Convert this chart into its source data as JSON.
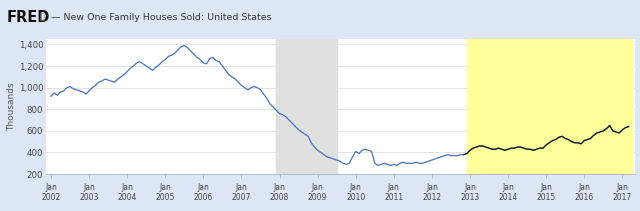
{
  "title_fred": "FRED",
  "title_series": "— New One Family Houses Sold: United States",
  "ylabel": "Thousands",
  "ylim": [
    200,
    1450
  ],
  "yticks": [
    200,
    400,
    600,
    800,
    1000,
    1200,
    1400
  ],
  "ytick_labels": [
    "200",
    "400",
    "600",
    "800",
    "1,000",
    "1,200",
    "1,400"
  ],
  "recession_start": 2007.917,
  "recession_end": 2009.5,
  "highlight_start": 2012.917,
  "highlight_end": 2017.25,
  "highlight_color": "#ffff99",
  "recession_color": "#e0e0e0",
  "line_color_normal": "#4472c4",
  "line_color_highlight": "#1a1a1a",
  "bg_color": "#dce6f5",
  "plot_bg_color": "#ffffff",
  "header_bg_color": "#d0dded",
  "data": [
    [
      2002.0,
      920
    ],
    [
      2002.083,
      950
    ],
    [
      2002.167,
      930
    ],
    [
      2002.25,
      960
    ],
    [
      2002.333,
      970
    ],
    [
      2002.417,
      1000
    ],
    [
      2002.5,
      1010
    ],
    [
      2002.583,
      990
    ],
    [
      2002.667,
      980
    ],
    [
      2002.75,
      970
    ],
    [
      2002.833,
      960
    ],
    [
      2002.917,
      940
    ],
    [
      2003.0,
      970
    ],
    [
      2003.083,
      1000
    ],
    [
      2003.167,
      1020
    ],
    [
      2003.25,
      1050
    ],
    [
      2003.333,
      1060
    ],
    [
      2003.417,
      1080
    ],
    [
      2003.5,
      1070
    ],
    [
      2003.583,
      1060
    ],
    [
      2003.667,
      1050
    ],
    [
      2003.75,
      1080
    ],
    [
      2003.833,
      1100
    ],
    [
      2003.917,
      1120
    ],
    [
      2004.0,
      1150
    ],
    [
      2004.083,
      1180
    ],
    [
      2004.167,
      1200
    ],
    [
      2004.25,
      1230
    ],
    [
      2004.333,
      1240
    ],
    [
      2004.417,
      1220
    ],
    [
      2004.5,
      1200
    ],
    [
      2004.583,
      1180
    ],
    [
      2004.667,
      1160
    ],
    [
      2004.75,
      1190
    ],
    [
      2004.833,
      1210
    ],
    [
      2004.917,
      1240
    ],
    [
      2005.0,
      1260
    ],
    [
      2005.083,
      1290
    ],
    [
      2005.167,
      1300
    ],
    [
      2005.25,
      1320
    ],
    [
      2005.333,
      1350
    ],
    [
      2005.417,
      1380
    ],
    [
      2005.5,
      1390
    ],
    [
      2005.583,
      1370
    ],
    [
      2005.667,
      1340
    ],
    [
      2005.75,
      1310
    ],
    [
      2005.833,
      1280
    ],
    [
      2005.917,
      1260
    ],
    [
      2006.0,
      1230
    ],
    [
      2006.083,
      1220
    ],
    [
      2006.167,
      1270
    ],
    [
      2006.25,
      1280
    ],
    [
      2006.333,
      1250
    ],
    [
      2006.417,
      1240
    ],
    [
      2006.5,
      1200
    ],
    [
      2006.583,
      1160
    ],
    [
      2006.667,
      1120
    ],
    [
      2006.75,
      1100
    ],
    [
      2006.833,
      1080
    ],
    [
      2006.917,
      1050
    ],
    [
      2007.0,
      1020
    ],
    [
      2007.083,
      1000
    ],
    [
      2007.167,
      980
    ],
    [
      2007.25,
      1000
    ],
    [
      2007.333,
      1010
    ],
    [
      2007.417,
      1000
    ],
    [
      2007.5,
      980
    ],
    [
      2007.583,
      940
    ],
    [
      2007.667,
      900
    ],
    [
      2007.75,
      850
    ],
    [
      2007.833,
      820
    ],
    [
      2007.917,
      790
    ],
    [
      2008.0,
      760
    ],
    [
      2008.083,
      750
    ],
    [
      2008.167,
      730
    ],
    [
      2008.25,
      700
    ],
    [
      2008.333,
      670
    ],
    [
      2008.417,
      640
    ],
    [
      2008.5,
      610
    ],
    [
      2008.583,
      590
    ],
    [
      2008.667,
      570
    ],
    [
      2008.75,
      550
    ],
    [
      2008.833,
      490
    ],
    [
      2008.917,
      450
    ],
    [
      2009.0,
      420
    ],
    [
      2009.083,
      400
    ],
    [
      2009.167,
      380
    ],
    [
      2009.25,
      360
    ],
    [
      2009.333,
      350
    ],
    [
      2009.417,
      340
    ],
    [
      2009.5,
      330
    ],
    [
      2009.583,
      320
    ],
    [
      2009.667,
      300
    ],
    [
      2009.75,
      290
    ],
    [
      2009.833,
      300
    ],
    [
      2009.917,
      360
    ],
    [
      2010.0,
      410
    ],
    [
      2010.083,
      390
    ],
    [
      2010.167,
      420
    ],
    [
      2010.25,
      430
    ],
    [
      2010.333,
      420
    ],
    [
      2010.417,
      410
    ],
    [
      2010.5,
      300
    ],
    [
      2010.583,
      280
    ],
    [
      2010.667,
      290
    ],
    [
      2010.75,
      300
    ],
    [
      2010.833,
      290
    ],
    [
      2010.917,
      280
    ],
    [
      2011.0,
      290
    ],
    [
      2011.083,
      280
    ],
    [
      2011.167,
      300
    ],
    [
      2011.25,
      310
    ],
    [
      2011.333,
      300
    ],
    [
      2011.417,
      300
    ],
    [
      2011.5,
      300
    ],
    [
      2011.583,
      310
    ],
    [
      2011.667,
      300
    ],
    [
      2011.75,
      300
    ],
    [
      2011.833,
      310
    ],
    [
      2011.917,
      320
    ],
    [
      2012.0,
      330
    ],
    [
      2012.083,
      340
    ],
    [
      2012.167,
      350
    ],
    [
      2012.25,
      360
    ],
    [
      2012.333,
      370
    ],
    [
      2012.417,
      380
    ],
    [
      2012.5,
      370
    ],
    [
      2012.583,
      370
    ],
    [
      2012.667,
      370
    ],
    [
      2012.75,
      380
    ],
    [
      2012.833,
      380
    ],
    [
      2012.917,
      390
    ],
    [
      2013.0,
      420
    ],
    [
      2013.083,
      440
    ],
    [
      2013.167,
      450
    ],
    [
      2013.25,
      460
    ],
    [
      2013.333,
      460
    ],
    [
      2013.417,
      450
    ],
    [
      2013.5,
      440
    ],
    [
      2013.583,
      430
    ],
    [
      2013.667,
      430
    ],
    [
      2013.75,
      440
    ],
    [
      2013.833,
      430
    ],
    [
      2013.917,
      420
    ],
    [
      2014.0,
      430
    ],
    [
      2014.083,
      440
    ],
    [
      2014.167,
      440
    ],
    [
      2014.25,
      450
    ],
    [
      2014.333,
      450
    ],
    [
      2014.417,
      440
    ],
    [
      2014.5,
      430
    ],
    [
      2014.583,
      430
    ],
    [
      2014.667,
      420
    ],
    [
      2014.75,
      430
    ],
    [
      2014.833,
      440
    ],
    [
      2014.917,
      440
    ],
    [
      2015.0,
      470
    ],
    [
      2015.083,
      490
    ],
    [
      2015.167,
      510
    ],
    [
      2015.25,
      520
    ],
    [
      2015.333,
      540
    ],
    [
      2015.417,
      550
    ],
    [
      2015.5,
      530
    ],
    [
      2015.583,
      520
    ],
    [
      2015.667,
      500
    ],
    [
      2015.75,
      490
    ],
    [
      2015.833,
      490
    ],
    [
      2015.917,
      480
    ],
    [
      2016.0,
      510
    ],
    [
      2016.083,
      520
    ],
    [
      2016.167,
      530
    ],
    [
      2016.25,
      560
    ],
    [
      2016.333,
      580
    ],
    [
      2016.417,
      590
    ],
    [
      2016.5,
      600
    ],
    [
      2016.583,
      620
    ],
    [
      2016.667,
      650
    ],
    [
      2016.75,
      600
    ],
    [
      2016.833,
      590
    ],
    [
      2016.917,
      580
    ],
    [
      2017.0,
      610
    ],
    [
      2017.083,
      630
    ],
    [
      2017.167,
      640
    ]
  ],
  "xtick_positions": [
    2002.0,
    2003.0,
    2004.0,
    2005.0,
    2006.0,
    2007.0,
    2008.0,
    2009.0,
    2010.0,
    2011.0,
    2012.0,
    2013.0,
    2014.0,
    2015.0,
    2016.0,
    2017.0
  ],
  "xtick_labels": [
    "Jan\n2002",
    "Jan\n2003",
    "Jan\n2004",
    "Jan\n2005",
    "Jan\n2006",
    "Jan\n2007",
    "Jan\n2008",
    "Jan\n2009",
    "Jan\n2010",
    "Jan\n2011",
    "Jan\n2012",
    "Jan\n2013",
    "Jan\n2014",
    "Jan\n2015",
    "Jan\n2016",
    "Jan\n2017"
  ]
}
